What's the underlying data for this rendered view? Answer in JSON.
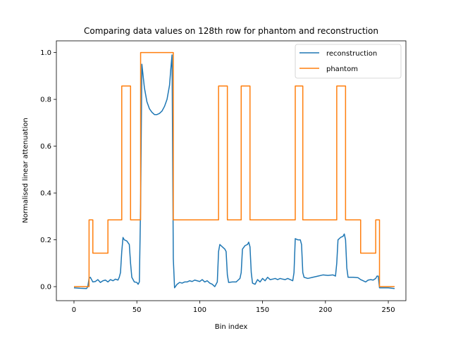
{
  "chart_data": {
    "type": "line",
    "title": "Comparing data values on 128th row for phantom and reconstruction",
    "xlabel": "Bin index",
    "ylabel": "Normalised linear attenuation",
    "xlim": [
      -14,
      264
    ],
    "ylim": [
      -0.06,
      1.05
    ],
    "xticks": [
      0,
      50,
      100,
      150,
      200,
      250
    ],
    "yticks": [
      0.0,
      0.2,
      0.4,
      0.6,
      0.8,
      1.0
    ],
    "grid": false,
    "legend": "top-right",
    "series": [
      {
        "name": "reconstruction",
        "color": "#1f77b4",
        "points": [
          [
            0,
            -0.005
          ],
          [
            5,
            -0.007
          ],
          [
            10,
            -0.008
          ],
          [
            11,
            0.0
          ],
          [
            12,
            0.035
          ],
          [
            13,
            0.04
          ],
          [
            14,
            0.03
          ],
          [
            15,
            0.02
          ],
          [
            17,
            0.022
          ],
          [
            19,
            0.03
          ],
          [
            21,
            0.018
          ],
          [
            23,
            0.025
          ],
          [
            25,
            0.028
          ],
          [
            27,
            0.02
          ],
          [
            29,
            0.03
          ],
          [
            31,
            0.025
          ],
          [
            33,
            0.032
          ],
          [
            35,
            0.028
          ],
          [
            36,
            0.04
          ],
          [
            37,
            0.06
          ],
          [
            38,
            0.15
          ],
          [
            39,
            0.21
          ],
          [
            40,
            0.2
          ],
          [
            42,
            0.195
          ],
          [
            44,
            0.18
          ],
          [
            45,
            0.1
          ],
          [
            46,
            0.04
          ],
          [
            48,
            0.02
          ],
          [
            50,
            0.018
          ],
          [
            51,
            0.01
          ],
          [
            52,
            0.02
          ],
          [
            53,
            0.35
          ],
          [
            54,
            0.95
          ],
          [
            55,
            0.9
          ],
          [
            56,
            0.85
          ],
          [
            58,
            0.79
          ],
          [
            60,
            0.76
          ],
          [
            62,
            0.745
          ],
          [
            64,
            0.735
          ],
          [
            66,
            0.735
          ],
          [
            68,
            0.74
          ],
          [
            70,
            0.75
          ],
          [
            72,
            0.77
          ],
          [
            74,
            0.8
          ],
          [
            76,
            0.86
          ],
          [
            77,
            0.93
          ],
          [
            78,
            0.99
          ],
          [
            79,
            0.12
          ],
          [
            80,
            -0.005
          ],
          [
            82,
            0.01
          ],
          [
            84,
            0.018
          ],
          [
            86,
            0.015
          ],
          [
            88,
            0.02
          ],
          [
            90,
            0.02
          ],
          [
            92,
            0.025
          ],
          [
            94,
            0.022
          ],
          [
            96,
            0.028
          ],
          [
            98,
            0.025
          ],
          [
            100,
            0.022
          ],
          [
            102,
            0.03
          ],
          [
            104,
            0.02
          ],
          [
            106,
            0.025
          ],
          [
            108,
            0.015
          ],
          [
            110,
            0.01
          ],
          [
            112,
            0.0
          ],
          [
            114,
            0.02
          ],
          [
            115,
            0.15
          ],
          [
            116,
            0.18
          ],
          [
            117,
            0.175
          ],
          [
            118,
            0.17
          ],
          [
            120,
            0.16
          ],
          [
            121,
            0.15
          ],
          [
            122,
            0.05
          ],
          [
            123,
            0.018
          ],
          [
            126,
            0.02
          ],
          [
            129,
            0.02
          ],
          [
            130,
            0.025
          ],
          [
            132,
            0.035
          ],
          [
            133,
            0.06
          ],
          [
            134,
            0.16
          ],
          [
            136,
            0.175
          ],
          [
            138,
            0.18
          ],
          [
            139,
            0.19
          ],
          [
            140,
            0.17
          ],
          [
            141,
            0.06
          ],
          [
            142,
            0.015
          ],
          [
            144,
            0.01
          ],
          [
            146,
            0.03
          ],
          [
            148,
            0.02
          ],
          [
            150,
            0.035
          ],
          [
            152,
            0.025
          ],
          [
            154,
            0.04
          ],
          [
            156,
            0.03
          ],
          [
            158,
            0.032
          ],
          [
            160,
            0.035
          ],
          [
            162,
            0.03
          ],
          [
            164,
            0.035
          ],
          [
            166,
            0.032
          ],
          [
            168,
            0.03
          ],
          [
            170,
            0.035
          ],
          [
            172,
            0.03
          ],
          [
            174,
            0.025
          ],
          [
            175,
            0.06
          ],
          [
            176,
            0.205
          ],
          [
            178,
            0.2
          ],
          [
            180,
            0.2
          ],
          [
            181,
            0.18
          ],
          [
            182,
            0.06
          ],
          [
            183,
            0.04
          ],
          [
            186,
            0.035
          ],
          [
            190,
            0.04
          ],
          [
            194,
            0.045
          ],
          [
            198,
            0.05
          ],
          [
            202,
            0.048
          ],
          [
            206,
            0.05
          ],
          [
            208,
            0.045
          ],
          [
            209,
            0.1
          ],
          [
            210,
            0.2
          ],
          [
            212,
            0.21
          ],
          [
            214,
            0.215
          ],
          [
            215,
            0.225
          ],
          [
            216,
            0.2
          ],
          [
            217,
            0.08
          ],
          [
            218,
            0.04
          ],
          [
            222,
            0.04
          ],
          [
            226,
            0.038
          ],
          [
            228,
            0.03
          ],
          [
            230,
            0.025
          ],
          [
            232,
            0.02
          ],
          [
            234,
            0.028
          ],
          [
            236,
            0.03
          ],
          [
            238,
            0.028
          ],
          [
            240,
            0.035
          ],
          [
            241,
            0.045
          ],
          [
            242,
            0.045
          ],
          [
            243,
            -0.005
          ],
          [
            245,
            -0.005
          ],
          [
            250,
            -0.005
          ],
          [
            255,
            -0.008
          ]
        ]
      },
      {
        "name": "phantom",
        "color": "#ff7f0e",
        "points": [
          [
            0,
            0.0
          ],
          [
            12,
            0.0
          ],
          [
            12,
            0.285
          ],
          [
            15,
            0.285
          ],
          [
            15,
            0.143
          ],
          [
            27,
            0.143
          ],
          [
            27,
            0.285
          ],
          [
            38,
            0.285
          ],
          [
            38,
            0.857
          ],
          [
            45,
            0.857
          ],
          [
            45,
            0.285
          ],
          [
            53,
            0.285
          ],
          [
            53,
            1.0
          ],
          [
            79,
            1.0
          ],
          [
            79,
            0.285
          ],
          [
            115,
            0.285
          ],
          [
            115,
            0.857
          ],
          [
            122,
            0.857
          ],
          [
            122,
            0.285
          ],
          [
            133,
            0.285
          ],
          [
            133,
            0.857
          ],
          [
            140,
            0.857
          ],
          [
            140,
            0.285
          ],
          [
            176,
            0.285
          ],
          [
            176,
            0.857
          ],
          [
            182,
            0.857
          ],
          [
            182,
            0.285
          ],
          [
            209,
            0.285
          ],
          [
            209,
            0.857
          ],
          [
            216,
            0.857
          ],
          [
            216,
            0.285
          ],
          [
            228,
            0.285
          ],
          [
            228,
            0.143
          ],
          [
            240,
            0.143
          ],
          [
            240,
            0.285
          ],
          [
            243,
            0.285
          ],
          [
            243,
            0.0
          ],
          [
            255,
            0.0
          ]
        ]
      }
    ]
  }
}
